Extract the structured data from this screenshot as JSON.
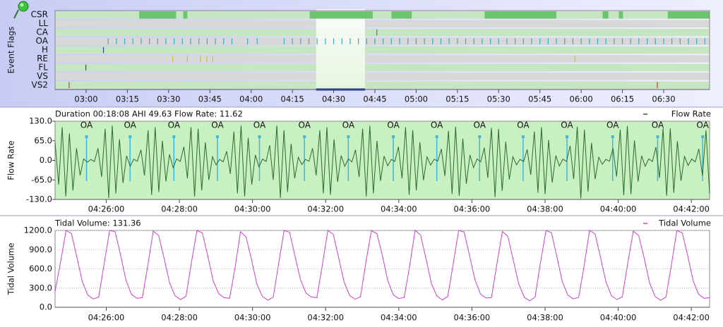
{
  "chart_data": [
    {
      "type": "event-flags",
      "ylabel": "Event Flags",
      "xlim": [
        168.7,
        406.7
      ],
      "xticks": [
        {
          "value": 180,
          "label": "03:00"
        },
        {
          "value": 195,
          "label": "03:15"
        },
        {
          "value": 210,
          "label": "03:30"
        },
        {
          "value": 225,
          "label": "03:45"
        },
        {
          "value": 240,
          "label": "04:00"
        },
        {
          "value": 255,
          "label": "04:15"
        },
        {
          "value": 270,
          "label": "04:30"
        },
        {
          "value": 285,
          "label": "04:45"
        },
        {
          "value": 300,
          "label": "05:00"
        },
        {
          "value": 315,
          "label": "05:15"
        },
        {
          "value": 330,
          "label": "05:30"
        },
        {
          "value": 345,
          "label": "05:45"
        },
        {
          "value": 360,
          "label": "06:00"
        },
        {
          "value": 375,
          "label": "06:15"
        },
        {
          "value": 390,
          "label": "06:30"
        }
      ],
      "selection": [
        263.6,
        281.4
      ],
      "flags": [
        {
          "name": "CSR",
          "color": "#6cc46c",
          "spans": [
            [
              199.3,
              212.7
            ],
            [
              215.3,
              216.8
            ],
            [
              261.3,
              284.2
            ],
            [
              291.0,
              298.4
            ],
            [
              324.9,
              351.0
            ],
            [
              367.8,
              369.9
            ],
            [
              373.7,
              375.2
            ],
            [
              391.5,
              406.7
            ]
          ]
        },
        {
          "name": "LL",
          "color": "#6cc46c",
          "events": []
        },
        {
          "name": "CA",
          "color": "#a050a8",
          "events": [
            285.7
          ]
        },
        {
          "name": "OA",
          "color": "#3aa8c0",
          "events": [
            188,
            191,
            194,
            197,
            200,
            203,
            206,
            209,
            212,
            215,
            218,
            221,
            224,
            227,
            230,
            233,
            238.7,
            242.2,
            252,
            255,
            258,
            261,
            264,
            267,
            270,
            273,
            276,
            279,
            282,
            285,
            288,
            291,
            294,
            297,
            300,
            303,
            306,
            309,
            312,
            315,
            318,
            321,
            324,
            327,
            330,
            333,
            336,
            339,
            342,
            345,
            348,
            351,
            354,
            357,
            360,
            363,
            366,
            369,
            372,
            375,
            378,
            381,
            384,
            387,
            390,
            393,
            396,
            399,
            402,
            405
          ]
        },
        {
          "name": "H",
          "color": "#3040a0",
          "events": [
            186.3
          ]
        },
        {
          "name": "RE",
          "color": "#c8c020",
          "events": [
            211.5,
            216.8,
            221.6,
            223.9,
            226.0,
            357.7
          ]
        },
        {
          "name": "FL",
          "color": "#404080",
          "events": [
            179.9
          ]
        },
        {
          "name": "VS",
          "color": "#c04020",
          "events": []
        },
        {
          "name": "VS2",
          "color": "#c04020",
          "events": [
            173.8,
            387.7
          ]
        }
      ]
    },
    {
      "type": "line",
      "title": "Duration 00:18:08 AHI 49.63 Flow Rate: 11.62",
      "ylabel": "Flow Rate",
      "xlim": [
        264.6,
        282.5
      ],
      "xticks": [
        {
          "value": 266,
          "label": "04:26:00"
        },
        {
          "value": 268,
          "label": "04:28:00"
        },
        {
          "value": 270,
          "label": "04:30:00"
        },
        {
          "value": 272,
          "label": "04:32:00"
        },
        {
          "value": 274,
          "label": "04:34:00"
        },
        {
          "value": 276,
          "label": "04:36:00"
        },
        {
          "value": 278,
          "label": "04:38:00"
        },
        {
          "value": 280,
          "label": "04:40:00"
        },
        {
          "value": 282,
          "label": "04:42:00"
        }
      ],
      "ylim": [
        -130,
        130
      ],
      "yticks": [
        {
          "value": 130,
          "label": "130.0"
        },
        {
          "value": 65,
          "label": "65.0"
        },
        {
          "value": 0,
          "label": "0.0"
        },
        {
          "value": -65,
          "label": "-65.0"
        },
        {
          "value": -130,
          "label": "-130.0"
        }
      ],
      "grid": false,
      "background": "#c8f0c0",
      "annotation_color": "#40b8e0",
      "annotations": [
        {
          "label": "OA",
          "x": 265.46
        },
        {
          "label": "OA",
          "x": 266.65
        },
        {
          "label": "OA",
          "x": 267.85
        },
        {
          "label": "OA",
          "x": 269.04
        },
        {
          "label": "OA",
          "x": 270.19
        },
        {
          "label": "OA",
          "x": 271.42
        },
        {
          "label": "OA",
          "x": 272.62
        },
        {
          "label": "OA",
          "x": 273.85
        },
        {
          "label": "OA",
          "x": 275.04
        },
        {
          "label": "OA",
          "x": 276.21
        },
        {
          "label": "OA",
          "x": 277.4
        },
        {
          "label": "OA",
          "x": 278.6
        },
        {
          "label": "OA",
          "x": 279.85
        },
        {
          "label": "OA",
          "x": 281.08
        },
        {
          "label": "OA",
          "x": 282.31
        }
      ],
      "series": [
        {
          "name": "Flow Rate",
          "color": "#2e6b2e",
          "values": [
            60,
            -80,
            110,
            -120,
            90,
            -100,
            40,
            -50,
            5,
            -6,
            3,
            -4,
            40,
            -55,
            105,
            -125,
            115,
            -110,
            70,
            -75,
            15,
            -20,
            4,
            -3,
            35,
            -50,
            100,
            -115,
            110,
            -105,
            65,
            -70,
            20,
            -25,
            5,
            -4,
            45,
            -60,
            110,
            -120,
            105,
            -100,
            60,
            -65,
            12,
            -15,
            3,
            -5,
            30,
            -45,
            95,
            -110,
            115,
            -120,
            75,
            -80,
            18,
            -22,
            4,
            -4,
            50,
            -65,
            115,
            -125,
            100,
            -105,
            55,
            -60,
            10,
            -14,
            3,
            -3,
            40,
            -50,
            100,
            -110,
            110,
            -115,
            70,
            -72,
            16,
            -20,
            5,
            -5,
            35,
            -55,
            105,
            -120,
            115,
            -110,
            65,
            -68,
            14,
            -18,
            3,
            -4,
            45,
            -60,
            110,
            -115,
            100,
            -100,
            60,
            -66,
            12,
            -16,
            4,
            -3,
            38,
            -52,
            98,
            -112,
            112,
            -118,
            72,
            -78,
            18,
            -24,
            5,
            -5,
            42,
            -58,
            108,
            -122,
            104,
            -102,
            62,
            -64,
            12,
            -15,
            3,
            -4,
            36,
            -48,
            96,
            -108,
            110,
            -112,
            68,
            -74,
            16,
            -19,
            4,
            -4,
            48,
            -62,
            112,
            -126,
            102,
            -104,
            58,
            -62,
            10,
            -13,
            3,
            -3,
            40,
            -54,
            102,
            -116,
            114,
            -112,
            66,
            -70,
            15,
            -20,
            5,
            -4,
            44,
            -58,
            106,
            -118,
            106,
            -108,
            64,
            -68,
            13,
            -17,
            4,
            -5,
            38,
            -50,
            100,
            -112
          ]
        }
      ]
    },
    {
      "type": "line",
      "title": "Tidal Volume: 131.36",
      "ylabel": "Tidal Volume",
      "xlim": [
        264.6,
        282.5
      ],
      "xticks": [
        {
          "value": 266,
          "label": "04:26:00"
        },
        {
          "value": 268,
          "label": "04:28:00"
        },
        {
          "value": 270,
          "label": "04:30:00"
        },
        {
          "value": 272,
          "label": "04:32:00"
        },
        {
          "value": 274,
          "label": "04:34:00"
        },
        {
          "value": 276,
          "label": "04:36:00"
        },
        {
          "value": 278,
          "label": "04:38:00"
        },
        {
          "value": 280,
          "label": "04:40:00"
        },
        {
          "value": 282,
          "label": "04:42:00"
        }
      ],
      "ylim": [
        0,
        1200
      ],
      "yticks": [
        {
          "value": 0,
          "label": "0.0"
        },
        {
          "value": 300,
          "label": "300.0"
        },
        {
          "value": 600,
          "label": "600.0"
        },
        {
          "value": 900,
          "label": "900.0"
        },
        {
          "value": 1200,
          "label": "1200.0"
        }
      ],
      "grid": true,
      "background": "#ffffff",
      "series": [
        {
          "name": "Tidal Volume",
          "color": "#d040d0",
          "values": [
            250,
            700,
            1200,
            1150,
            780,
            400,
            190,
            130,
            160,
            680,
            1200,
            1180,
            820,
            420,
            200,
            140,
            150,
            650,
            1190,
            1120,
            760,
            380,
            180,
            120,
            170,
            700,
            1200,
            1160,
            800,
            410,
            210,
            150,
            140,
            620,
            1180,
            1100,
            750,
            360,
            170,
            110,
            160,
            690,
            1200,
            1170,
            790,
            430,
            220,
            160,
            150,
            660,
            1200,
            1140,
            770,
            390,
            185,
            125,
            165,
            710,
            1195,
            1150,
            810,
            415,
            195,
            135,
            155,
            640,
            1200,
            1130,
            760,
            370,
            175,
            115,
            170,
            680,
            1200,
            1175,
            800,
            425,
            205,
            145,
            150,
            670,
            1185,
            1110,
            740,
            365,
            160,
            100,
            160,
            700,
            1200,
            1165,
            790,
            400,
            190,
            130,
            155,
            650,
            1200,
            1145,
            780,
            395,
            180,
            120,
            165,
            690,
            1190,
            1120,
            770,
            380,
            170,
            110,
            160,
            660,
            1200,
            1160,
            800,
            410,
            200,
            140,
            150
          ]
        }
      ]
    }
  ]
}
